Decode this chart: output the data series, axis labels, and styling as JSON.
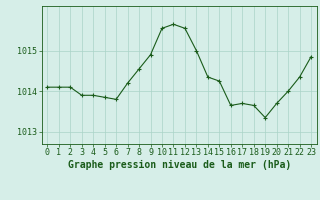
{
  "x": [
    0,
    1,
    2,
    3,
    4,
    5,
    6,
    7,
    8,
    9,
    10,
    11,
    12,
    13,
    14,
    15,
    16,
    17,
    18,
    19,
    20,
    21,
    22,
    23
  ],
  "y": [
    1014.1,
    1014.1,
    1014.1,
    1013.9,
    1013.9,
    1013.85,
    1013.8,
    1014.2,
    1014.55,
    1014.9,
    1015.55,
    1015.65,
    1015.55,
    1015.0,
    1014.35,
    1014.25,
    1013.65,
    1013.7,
    1013.65,
    1013.35,
    1013.7,
    1014.0,
    1014.35,
    1014.85
  ],
  "line_color": "#1a5c1a",
  "marker": "+",
  "marker_size": 3,
  "bg_color": "#d6eee8",
  "grid_color": "#aad4c8",
  "xlabel": "Graphe pression niveau de la mer (hPa)",
  "xlabel_fontsize": 7,
  "yticks": [
    1013,
    1014,
    1015
  ],
  "ylim": [
    1012.7,
    1016.1
  ],
  "xlim": [
    -0.5,
    23.5
  ],
  "tick_fontsize": 6,
  "border_color": "#1a5c1a",
  "fig_width": 3.2,
  "fig_height": 2.0,
  "dpi": 100
}
